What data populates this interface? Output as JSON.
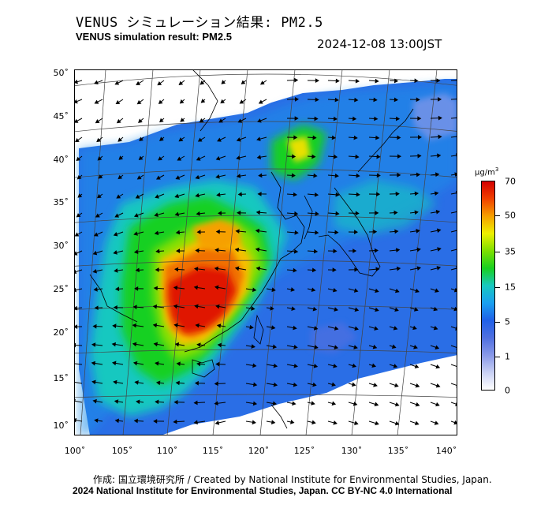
{
  "header": {
    "title_jp": "VENUS シミュレーション結果: PM2.5",
    "title_en": "VENUS simulation result: PM2.5",
    "timestamp": "2024-12-08 13:00JST"
  },
  "map": {
    "lat_labels": [
      "50˚",
      "45˚",
      "40˚",
      "35˚",
      "30˚",
      "25˚",
      "20˚",
      "15˚",
      "10˚"
    ],
    "lon_labels": [
      "100˚",
      "105˚",
      "110˚",
      "115˚",
      "120˚",
      "125˚",
      "130˚",
      "135˚",
      "140˚"
    ],
    "lat_values": [
      50,
      45,
      40,
      35,
      30,
      25,
      20,
      15,
      10
    ],
    "lon_values": [
      100,
      105,
      110,
      115,
      120,
      125,
      130,
      135,
      140
    ],
    "lat_range": [
      9,
      50.5
    ],
    "lon_range": [
      100,
      142
    ]
  },
  "colorbar": {
    "unit": "μg/m",
    "unit_sup": "3",
    "ticks": [
      "70",
      "50",
      "35",
      "15",
      "5",
      "1",
      "0"
    ],
    "colors": [
      "#d40000",
      "#f04000",
      "#f6a000",
      "#eef000",
      "#7ee000",
      "#18d020",
      "#18c8c0",
      "#1aa0f0",
      "#2060e8",
      "#4f6fe0",
      "#8898e8",
      "#c8d0f4",
      "#ffffff"
    ]
  },
  "footer": {
    "credit_line1": "作成: 国立環境研究所 / Created by National Institute for Environmental Studies, Japan.",
    "credit_line2": "2024 National Institute for Environmental Studies, Japan. CC BY-NC 4.0 International"
  }
}
